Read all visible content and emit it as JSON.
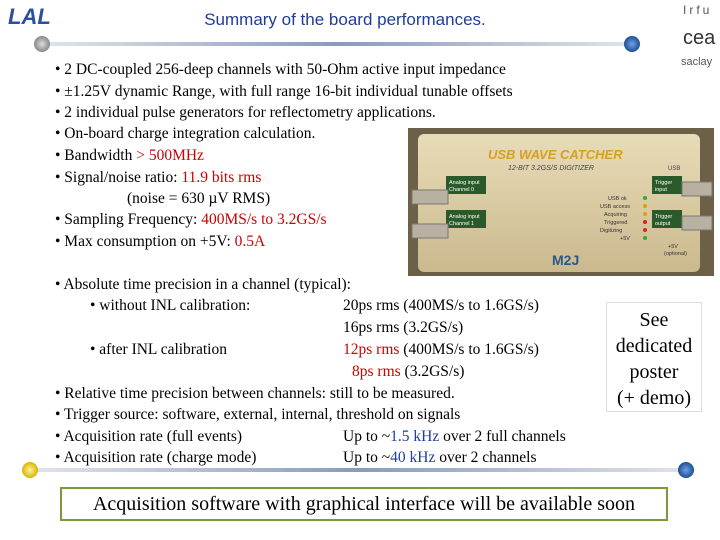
{
  "header": {
    "title": "Summary of the board performances.",
    "logo_left": "LAL",
    "logo_right": [
      "Irfu",
      "cea",
      "saclay"
    ]
  },
  "features": [
    [
      "• 2 DC-coupled 256-deep channels with 50-Ohm active input impedance"
    ],
    [
      "• ±1.25V dynamic Range, with full range 16-bit individual tunable offsets"
    ],
    [
      "• 2 individual pulse generators for reflectometry applications."
    ],
    [
      "• On-board charge integration calculation."
    ],
    [
      "• Bandwidth ",
      "> 500MHz"
    ],
    [
      "• Signal/noise ratio: ",
      "11.9 bits rms"
    ],
    [
      "(noise = 630 µV RMS)"
    ],
    [
      "• Sampling Frequency: ",
      "400MS/s to 3.2GS/s"
    ],
    [
      "• Max consumption on +5V: ",
      "0.5A"
    ]
  ],
  "device": {
    "name": "USB WAVE CATCHER",
    "subtitle": "12-BIT 3.2GS/S DIGITIZER",
    "usb": "USB",
    "in0": [
      "Analog input",
      "Channel 0"
    ],
    "in1": [
      "Analog input",
      "Channel 1"
    ],
    "trig_in": [
      "Trigger",
      "input"
    ],
    "trig_out": [
      "Trigger",
      "output"
    ],
    "leds": [
      "USB ok",
      "USB access",
      "Acquiring",
      "Triggered",
      "Digitizing",
      "+5V"
    ],
    "power": [
      "+5V",
      "(optional)"
    ],
    "brand": "M2J"
  },
  "timing": {
    "absolute": "• Absolute time precision in a channel (typical):",
    "without_label": "• without INL calibration:",
    "without_values": [
      "20ps rms (400MS/s to 1.6GS/s)",
      "16ps rms (3.2GS/s)"
    ],
    "after_label": "• after INL calibration",
    "after_values": [
      [
        "12ps rms",
        " (400MS/s to 1.6GS/s)"
      ],
      [
        "8ps rms",
        " (3.2GS/s)"
      ]
    ],
    "relative": "• Relative time precision between channels: still to be measured.",
    "trigger": "• Trigger source: software, external, internal, threshold on signals",
    "rate_full_label": "• Acquisition rate (full events)",
    "rate_full": [
      "Up to ~",
      "1.5 kHz",
      " over 2 full channels"
    ],
    "rate_charge_label": "• Acquisition rate (charge mode)",
    "rate_charge": [
      "Up to ~",
      "40 kHz",
      " over 2 channels"
    ]
  },
  "poster": [
    "See",
    "dedicated",
    "poster",
    "(+ demo)"
  ],
  "footer": "Acquisition software with graphical interface will be available soon"
}
